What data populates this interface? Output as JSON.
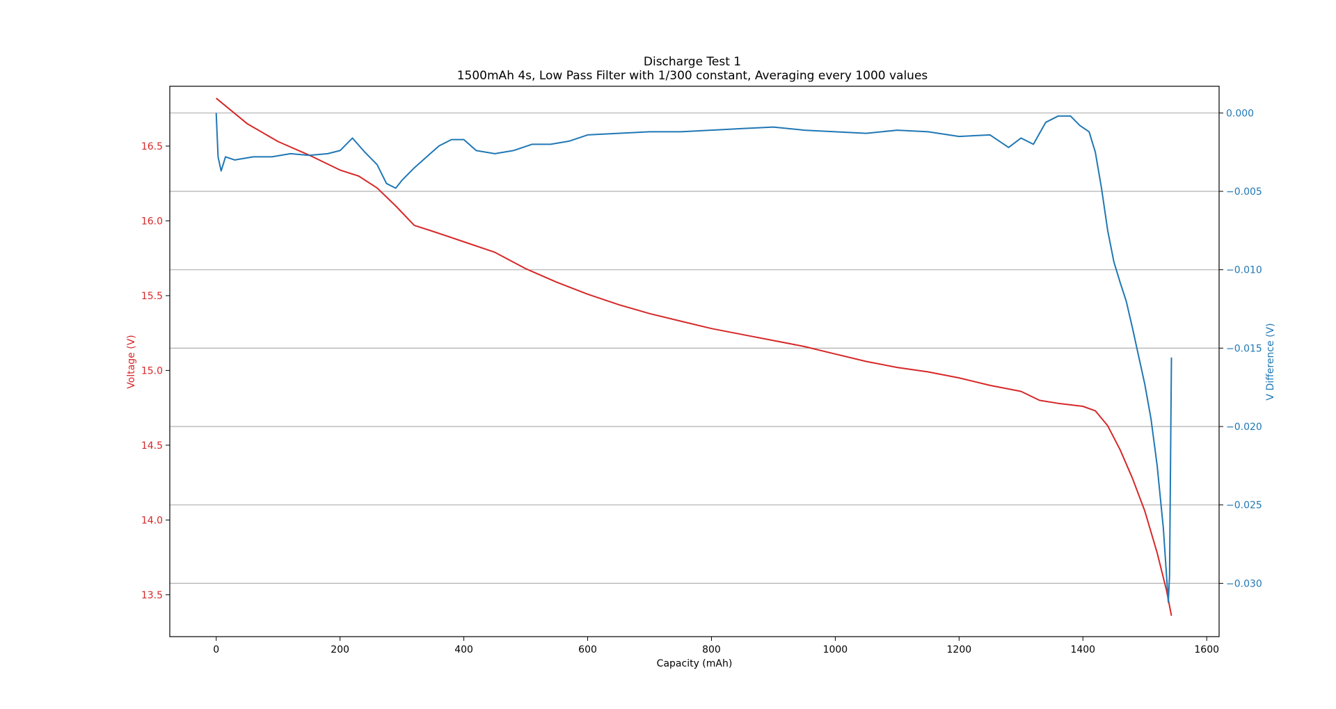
{
  "chart_data": {
    "type": "line",
    "title": "Discharge Test 1",
    "subtitle": "1500mAh 4s, Low Pass Filter with 1/300 constant, Averaging every 1000 values",
    "xlabel": "Capacity (mAh)",
    "ylabel_left": "Voltage (V)",
    "ylabel_right": "V Difference (V)",
    "xlim": [
      -75,
      1620
    ],
    "ylim_left": [
      13.22,
      16.9
    ],
    "ylim_right": [
      -0.0334,
      0.0017
    ],
    "x_ticks": [
      0,
      200,
      400,
      600,
      800,
      1000,
      1200,
      1400,
      1600
    ],
    "x_tick_labels": [
      "0",
      "200",
      "400",
      "600",
      "800",
      "1000",
      "1200",
      "1400",
      "1600"
    ],
    "y_left_ticks": [
      13.5,
      14.0,
      14.5,
      15.0,
      15.5,
      16.0,
      16.5
    ],
    "y_left_tick_labels": [
      "13.5",
      "14.0",
      "14.5",
      "15.0",
      "15.5",
      "16.0",
      "16.5"
    ],
    "y_right_ticks": [
      -0.03,
      -0.025,
      -0.02,
      -0.015,
      -0.01,
      -0.005,
      0.0
    ],
    "y_right_tick_labels": [
      "−0.030",
      "−0.025",
      "−0.020",
      "−0.015",
      "−0.010",
      "−0.005",
      "0.000"
    ],
    "grid": "horizontal lines at right-axis ticks",
    "colors": {
      "voltage": "#d62728",
      "difference": "#1f77b4",
      "grid": "#b0b0b0"
    },
    "series": [
      {
        "axis": "left",
        "color": "#d62728",
        "x": [
          0,
          50,
          100,
          150,
          200,
          230,
          260,
          290,
          320,
          350,
          400,
          450,
          500,
          550,
          600,
          650,
          700,
          750,
          800,
          850,
          900,
          950,
          1000,
          1050,
          1100,
          1150,
          1200,
          1250,
          1300,
          1330,
          1360,
          1400,
          1420,
          1440,
          1460,
          1480,
          1500,
          1520,
          1535,
          1543
        ],
        "values": [
          16.82,
          16.65,
          16.53,
          16.44,
          16.34,
          16.3,
          16.22,
          16.1,
          15.97,
          15.93,
          15.86,
          15.79,
          15.68,
          15.59,
          15.51,
          15.44,
          15.38,
          15.33,
          15.28,
          15.24,
          15.2,
          15.16,
          15.11,
          15.06,
          15.02,
          14.99,
          14.95,
          14.9,
          14.86,
          14.8,
          14.78,
          14.76,
          14.73,
          14.63,
          14.47,
          14.28,
          14.06,
          13.78,
          13.53,
          13.36
        ]
      },
      {
        "axis": "right",
        "color": "#1f77b4",
        "x": [
          0,
          3,
          8,
          15,
          30,
          60,
          90,
          120,
          150,
          180,
          200,
          220,
          240,
          260,
          275,
          290,
          300,
          320,
          340,
          360,
          380,
          400,
          420,
          450,
          480,
          510,
          540,
          570,
          600,
          650,
          700,
          750,
          800,
          850,
          900,
          950,
          1000,
          1050,
          1100,
          1150,
          1200,
          1250,
          1280,
          1300,
          1320,
          1340,
          1360,
          1380,
          1395,
          1410,
          1420,
          1430,
          1440,
          1450,
          1460,
          1470,
          1480,
          1490,
          1500,
          1510,
          1520,
          1530,
          1538,
          1540,
          1543
        ],
        "values": [
          0.0,
          -0.0028,
          -0.0037,
          -0.0028,
          -0.003,
          -0.0028,
          -0.0028,
          -0.0026,
          -0.0027,
          -0.0026,
          -0.0024,
          -0.0016,
          -0.0025,
          -0.0033,
          -0.0045,
          -0.0048,
          -0.0043,
          -0.0035,
          -0.0028,
          -0.0021,
          -0.0017,
          -0.0017,
          -0.0024,
          -0.0026,
          -0.0024,
          -0.002,
          -0.002,
          -0.0018,
          -0.0014,
          -0.0013,
          -0.0012,
          -0.0012,
          -0.0011,
          -0.001,
          -0.0009,
          -0.0011,
          -0.0012,
          -0.0013,
          -0.0011,
          -0.0012,
          -0.0015,
          -0.0014,
          -0.0022,
          -0.0016,
          -0.002,
          -0.0006,
          -0.0002,
          -0.0002,
          -0.0008,
          -0.0012,
          -0.0025,
          -0.0048,
          -0.0075,
          -0.0095,
          -0.0108,
          -0.012,
          -0.0137,
          -0.0155,
          -0.0173,
          -0.0195,
          -0.0225,
          -0.0265,
          -0.0312,
          -0.0295,
          -0.0156
        ]
      }
    ]
  }
}
